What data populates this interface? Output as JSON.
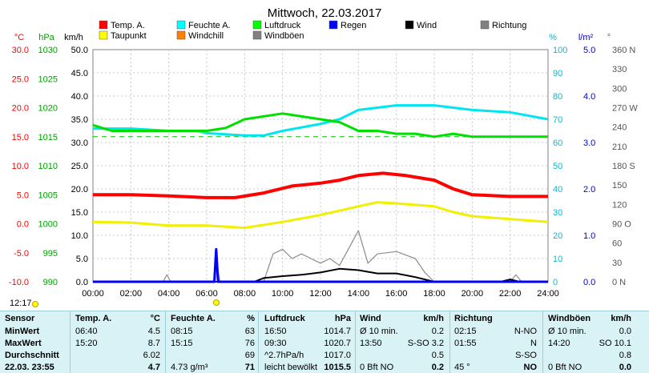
{
  "title": "Mittwoch, 22.03.2017",
  "time_marker": "12:17",
  "legend": [
    {
      "label": "Temp. A.",
      "color": "#ff0000"
    },
    {
      "label": "Feuchte A.",
      "color": "#00ffff"
    },
    {
      "label": "Luftdruck",
      "color": "#00ff00"
    },
    {
      "label": "Regen",
      "color": "#0000ff"
    },
    {
      "label": "Wind",
      "color": "#000000"
    },
    {
      "label": "Richtung",
      "color": "#808080"
    },
    {
      "label": "Taupunkt",
      "color": "#ffff00"
    },
    {
      "label": "Windchill",
      "color": "#ff8000"
    },
    {
      "label": "Windböen",
      "color": "#808080"
    }
  ],
  "colors": {
    "temp": "#ff0000",
    "humidity": "#00e5ee",
    "pressure": "#00e000",
    "dew": "#f0f000",
    "rain": "#0000ff",
    "wind": "#000000",
    "gust": "#8c8c8c",
    "direction": "#6e6e6e",
    "table_bg": "#d9f2f6",
    "header_bg": "#c8eaf0"
  },
  "axes": {
    "temp_unit": "°C",
    "hpa_unit": "hPa",
    "kmh_unit": "km/h",
    "pct_unit": "%",
    "rain_unit": "l/m²",
    "deg_unit": "°",
    "temp_ticks": [
      "30.0",
      "25.0",
      "20.0",
      "15.0",
      "10.0",
      "5.0",
      "0.0",
      "-5.0",
      "-10.0"
    ],
    "hpa_ticks": [
      "1030",
      "1025",
      "1020",
      "1015",
      "1010",
      "1005",
      "1000",
      "995",
      "990"
    ],
    "kmh_ticks": [
      "50.0",
      "45.0",
      "40.0",
      "35.0",
      "30.0",
      "25.0",
      "20.0",
      "15.0",
      "10.0",
      "5.0",
      "0.0"
    ],
    "pct_ticks": [
      "100",
      "90",
      "80",
      "70",
      "60",
      "50",
      "40",
      "30",
      "20",
      "10",
      "0"
    ],
    "rain_ticks": [
      "5.0",
      "4.0",
      "3.0",
      "2.0",
      "1.0",
      "0.0"
    ],
    "deg_ticks": [
      "360 N",
      "330",
      "300",
      "270 W",
      "240",
      "210",
      "180 S",
      "150",
      "120",
      "90 O",
      "60",
      "30",
      "0 N"
    ],
    "x_ticks": [
      "00:00",
      "02:00",
      "04:00",
      "06:00",
      "08:00",
      "10:00",
      "12:00",
      "14:00",
      "16:00",
      "18:00",
      "20:00",
      "22:00",
      "24:00"
    ]
  },
  "chart_data": {
    "type": "line",
    "x_unit": "hour",
    "series": [
      {
        "name": "Temp. A.",
        "unit": "°C",
        "points": [
          [
            0,
            5.0
          ],
          [
            2,
            5.0
          ],
          [
            4,
            4.8
          ],
          [
            6,
            4.5
          ],
          [
            7.5,
            4.5
          ],
          [
            9,
            5.3
          ],
          [
            10.5,
            6.5
          ],
          [
            12,
            7.0
          ],
          [
            13,
            7.5
          ],
          [
            14,
            8.3
          ],
          [
            15.3,
            8.7
          ],
          [
            16.5,
            8.3
          ],
          [
            18,
            7.5
          ],
          [
            19,
            6.0
          ],
          [
            20,
            5.0
          ],
          [
            22,
            4.7
          ],
          [
            24,
            4.7
          ]
        ]
      },
      {
        "name": "Feuchte A.",
        "unit": "%",
        "points": [
          [
            0,
            66
          ],
          [
            2,
            66
          ],
          [
            4,
            65
          ],
          [
            5.5,
            65
          ],
          [
            6,
            64
          ],
          [
            8,
            63
          ],
          [
            9,
            63
          ],
          [
            10,
            65
          ],
          [
            12,
            68
          ],
          [
            13,
            70
          ],
          [
            14,
            74
          ],
          [
            15,
            75
          ],
          [
            16,
            76
          ],
          [
            18,
            76
          ],
          [
            20,
            74
          ],
          [
            22,
            73
          ],
          [
            24,
            70
          ]
        ]
      },
      {
        "name": "Luftdruck",
        "unit": "hPa",
        "points": [
          [
            0,
            1017
          ],
          [
            1,
            1016
          ],
          [
            2,
            1016
          ],
          [
            4,
            1016
          ],
          [
            6,
            1016
          ],
          [
            7,
            1016.5
          ],
          [
            8,
            1018
          ],
          [
            10,
            1019
          ],
          [
            11,
            1018.5
          ],
          [
            12,
            1018
          ],
          [
            13,
            1017.5
          ],
          [
            14,
            1016
          ],
          [
            15,
            1016
          ],
          [
            16,
            1015.5
          ],
          [
            17,
            1015.5
          ],
          [
            18,
            1015
          ],
          [
            19,
            1015.5
          ],
          [
            20,
            1015
          ],
          [
            22,
            1015
          ],
          [
            24,
            1015
          ]
        ]
      },
      {
        "name": "Taupunkt",
        "unit": "°C",
        "points": [
          [
            0,
            0.3
          ],
          [
            2,
            0.2
          ],
          [
            4,
            -0.3
          ],
          [
            6,
            -0.3
          ],
          [
            8,
            -0.7
          ],
          [
            10,
            0.3
          ],
          [
            12,
            1.5
          ],
          [
            14,
            3.0
          ],
          [
            15,
            3.7
          ],
          [
            16,
            3.5
          ],
          [
            18,
            3.0
          ],
          [
            19,
            2.0
          ],
          [
            20,
            1.3
          ],
          [
            22,
            0.8
          ],
          [
            24,
            0.3
          ]
        ]
      },
      {
        "name": "Wind",
        "unit": "km/h",
        "points": [
          [
            0,
            0
          ],
          [
            8.5,
            0
          ],
          [
            9,
            0.8
          ],
          [
            10,
            1.2
          ],
          [
            11,
            1.5
          ],
          [
            12,
            2.0
          ],
          [
            13,
            2.8
          ],
          [
            14,
            2.5
          ],
          [
            15,
            1.8
          ],
          [
            16,
            1.8
          ],
          [
            17,
            1.0
          ],
          [
            18,
            0
          ],
          [
            21.5,
            0
          ],
          [
            22,
            0.5
          ],
          [
            22.5,
            0
          ],
          [
            24,
            0
          ]
        ]
      },
      {
        "name": "Windböen",
        "unit": "km/h",
        "points": [
          [
            0,
            0
          ],
          [
            3.7,
            0
          ],
          [
            3.9,
            1.5
          ],
          [
            4.1,
            0
          ],
          [
            6.4,
            0
          ],
          [
            6.5,
            4.5
          ],
          [
            6.7,
            0
          ],
          [
            9,
            0
          ],
          [
            9.5,
            6.0
          ],
          [
            10,
            7.0
          ],
          [
            10.5,
            5.0
          ],
          [
            11,
            6.0
          ],
          [
            12,
            4.0
          ],
          [
            12.5,
            5.0
          ],
          [
            13,
            3.5
          ],
          [
            14,
            11.0
          ],
          [
            14.5,
            4.0
          ],
          [
            15,
            6.0
          ],
          [
            16,
            6.5
          ],
          [
            17,
            5.0
          ],
          [
            17.5,
            2.0
          ],
          [
            18,
            0
          ],
          [
            22,
            0
          ],
          [
            22.3,
            1.5
          ],
          [
            22.6,
            0
          ],
          [
            24,
            0
          ]
        ]
      },
      {
        "name": "Regen",
        "unit": "l/m²",
        "points": [
          [
            0,
            0
          ],
          [
            6.4,
            0
          ],
          [
            6.5,
            0.7
          ],
          [
            6.6,
            0
          ],
          [
            24,
            0
          ]
        ]
      }
    ],
    "xlim": [
      0,
      24
    ],
    "ylim_temp": [
      -10,
      30
    ],
    "ylim_hpa": [
      990,
      1030
    ],
    "ylim_kmh": [
      0,
      50
    ],
    "ylim_pct": [
      0,
      100
    ],
    "ylim_rain": [
      0,
      5
    ],
    "ylim_deg": [
      0,
      360
    ],
    "dashed_pressure_ref": 1015
  },
  "table": {
    "headers": [
      "Sensor",
      "Temp. A.",
      "°C",
      "Feuchte A.",
      "%",
      "Luftdruck",
      "hPa",
      "Wind",
      "km/h",
      "Richtung",
      "Windböen",
      "km/h"
    ],
    "rows": [
      {
        "label": "MinWert",
        "temp_time": "06:40",
        "temp_val": "4.5",
        "hum_time": "08:15",
        "hum_val": "63",
        "pres_time": "16:50",
        "pres_val": "1014.7",
        "wind_time": "Ø 10 min.",
        "wind_val": "0.2",
        "dir_time": "02:15",
        "dir_val": "N-NO",
        "gust_time": "Ø 10 min.",
        "gust_val": "0.0"
      },
      {
        "label": "MaxWert",
        "temp_time": "15:20",
        "temp_val": "8.7",
        "hum_time": "15:15",
        "hum_val": "76",
        "pres_time": "09:30",
        "pres_val": "1020.7",
        "wind_time": "13:50",
        "wind_val": "S-SO 3.2",
        "dir_time": "01:55",
        "dir_val": "N",
        "gust_time": "14:20",
        "gust_val": "SO 10.1"
      },
      {
        "label": "Durchschnitt",
        "temp_time": "",
        "temp_val": "6.02",
        "hum_time": "",
        "hum_val": "69",
        "pres_time": "^2.7hPa/h",
        "pres_val": "1017.0",
        "wind_time": "",
        "wind_val": "0.5",
        "dir_time": "",
        "dir_val": "S-SO",
        "gust_time": "",
        "gust_val": "0.8"
      },
      {
        "label": "22.03. 23:55",
        "temp_time": "",
        "temp_val": "4.7",
        "hum_time": "4.73 g/m³",
        "hum_val": "71",
        "pres_time": "leicht bewölkt",
        "pres_val": "1015.5",
        "wind_time": "0 Bft NO",
        "wind_val": "0.2",
        "dir_time": "45 °",
        "dir_val": "NO",
        "gust_time": "0 Bft NO",
        "gust_val": "0.0"
      }
    ]
  }
}
